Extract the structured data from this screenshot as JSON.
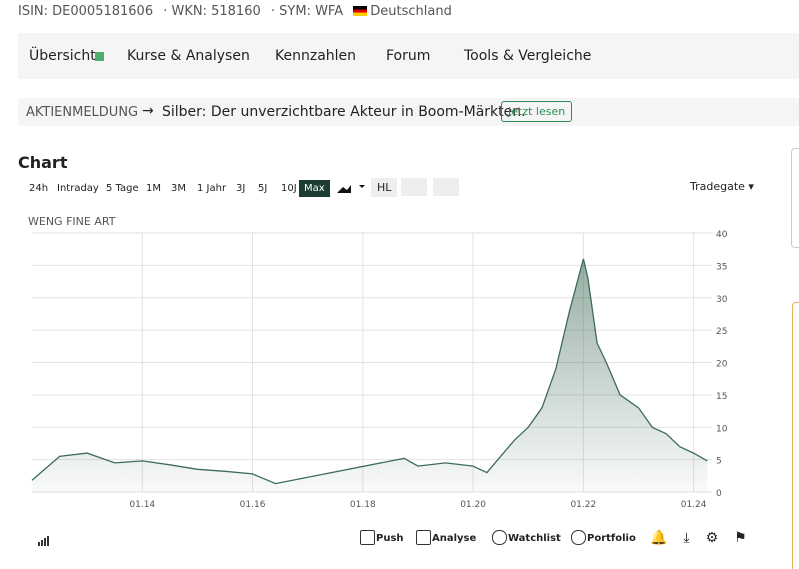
{
  "header": {
    "items": [
      "ISIN: DE0005181606",
      "· WKN: 518160",
      "· SYM: WFA",
      "Deutschland"
    ]
  },
  "nav": [
    "Übersicht",
    "Kurse & Analysen",
    "Kennzahlen",
    "Forum",
    "Tools & Vergleiche"
  ],
  "announcement": {
    "label": "AKTIENMELDUNG",
    "text": "Silber: Der unverzichtbare Akteur in Boom-Märkten.",
    "button": "Jetzt lesen"
  },
  "chart_section": {
    "title": "Chart",
    "ranges": [
      "24h",
      "Intraday",
      "5 Tage",
      "1M",
      "3M",
      "1 Jahr",
      "3J",
      "5J",
      "10J",
      "Max"
    ],
    "hl": "HL",
    "exchange": "Tradegate"
  },
  "actions": [
    "Push",
    "Analyse",
    "Watchlist",
    "Portfolio"
  ],
  "chart_data": {
    "type": "area",
    "title": "WENG FINE ART",
    "color": "#3f6b57",
    "x": [
      "01.12",
      "07.12",
      "01.13",
      "07.13",
      "01.14",
      "07.14",
      "01.15",
      "07.15",
      "01.16",
      "06.16",
      "10.18",
      "01.19",
      "07.19",
      "01.20",
      "04.20",
      "07.20",
      "10.20",
      "01.21",
      "04.21",
      "07.21",
      "10.21",
      "01.22",
      "02.22",
      "04.22",
      "06.22",
      "09.22",
      "01.23",
      "04.23",
      "07.23",
      "10.23",
      "01.24",
      "04.24"
    ],
    "series": [
      {
        "name": "WENG FINE ART",
        "color": "#3f6b57",
        "values": [
          1.8,
          5.5,
          6,
          4.5,
          4.8,
          4.2,
          3.5,
          3.2,
          2.8,
          1.3,
          5.2,
          4,
          4.5,
          4,
          3,
          5.5,
          8,
          10,
          13,
          19,
          28,
          36,
          33,
          23,
          20,
          15,
          13,
          10,
          9,
          7,
          6,
          4.8
        ]
      }
    ],
    "xlim": [
      "01.12",
      "05.24"
    ],
    "xticks": [
      "01.14",
      "01.16",
      "01.18",
      "01.20",
      "01.22",
      "01.24"
    ],
    "ylim": [
      0,
      40
    ],
    "yticks": [
      0,
      5,
      10,
      15,
      20,
      25,
      30,
      35,
      40
    ],
    "grid": true
  }
}
